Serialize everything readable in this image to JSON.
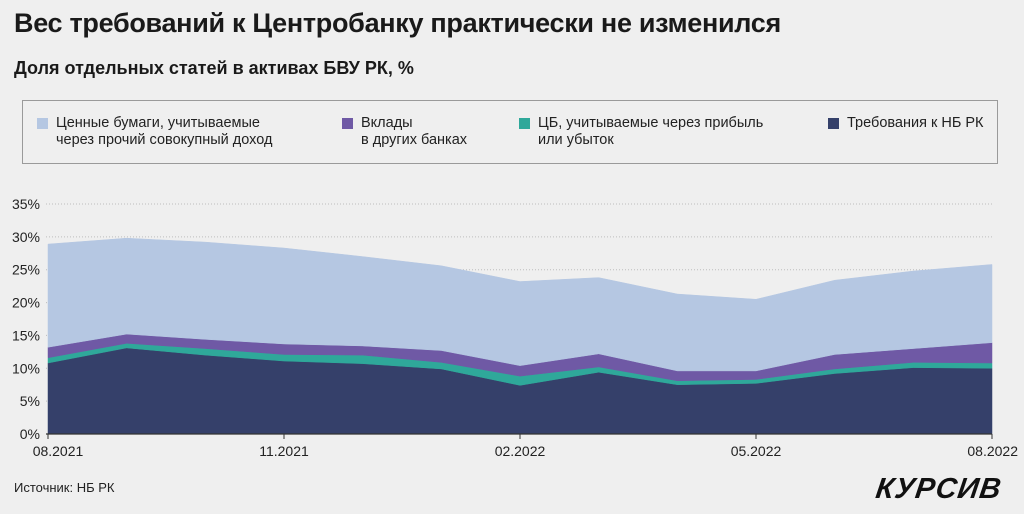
{
  "header": {
    "title": "Вес требований к Центробанку практически не изменился",
    "subtitle": "Доля отдельных статей в активах БВУ РК, %"
  },
  "footer": {
    "source": "Источник: НБ РК",
    "logo": "КУРСИВ"
  },
  "colors": {
    "background": "#efefef",
    "grid": "#bdbdbd",
    "axis": "#333333"
  },
  "chart_data": {
    "type": "area",
    "stacked": true,
    "title": "Доля отдельных статей в активах БВУ РК, %",
    "x": [
      "08.2021",
      "09.2021",
      "10.2021",
      "11.2021",
      "12.2021",
      "01.2022",
      "02.2022",
      "03.2022",
      "04.2022",
      "05.2022",
      "06.2022",
      "07.2022",
      "08.2022"
    ],
    "x_tick_labels": [
      "08.2021",
      "11.2021",
      "02.2022",
      "05.2022",
      "08.2022"
    ],
    "y_tick_labels": [
      "0%",
      "5%",
      "10%",
      "15%",
      "20%",
      "25%",
      "30%",
      "35%"
    ],
    "ylim": [
      0,
      35
    ],
    "grid": true,
    "legend_position": "top",
    "series": [
      {
        "name": "Требования к НБ РК",
        "color": "#35406a",
        "values": [
          10.8,
          13.1,
          12.0,
          11.1,
          10.7,
          9.9,
          7.4,
          9.4,
          7.5,
          7.7,
          9.2,
          10.1,
          10.0
        ]
      },
      {
        "name": "ЦБ, учитываемые через прибыль\nили убыток",
        "color": "#2fa89a",
        "values": [
          0.8,
          0.7,
          1.0,
          1.0,
          1.3,
          1.0,
          1.4,
          0.8,
          0.6,
          0.6,
          0.7,
          0.8,
          0.8
        ]
      },
      {
        "name": "Вклады\nв других банках",
        "color": "#6f59a5",
        "values": [
          1.6,
          1.4,
          1.4,
          1.6,
          1.4,
          1.8,
          1.6,
          2.0,
          1.5,
          1.3,
          2.2,
          2.1,
          3.1
        ]
      },
      {
        "name": "Ценные бумаги, учитываемые\nчерез прочий совокупный доход",
        "color": "#b5c7e2",
        "values": [
          15.7,
          14.6,
          14.8,
          14.6,
          13.6,
          12.9,
          12.8,
          11.6,
          11.7,
          10.9,
          11.3,
          11.8,
          11.9
        ]
      }
    ]
  }
}
